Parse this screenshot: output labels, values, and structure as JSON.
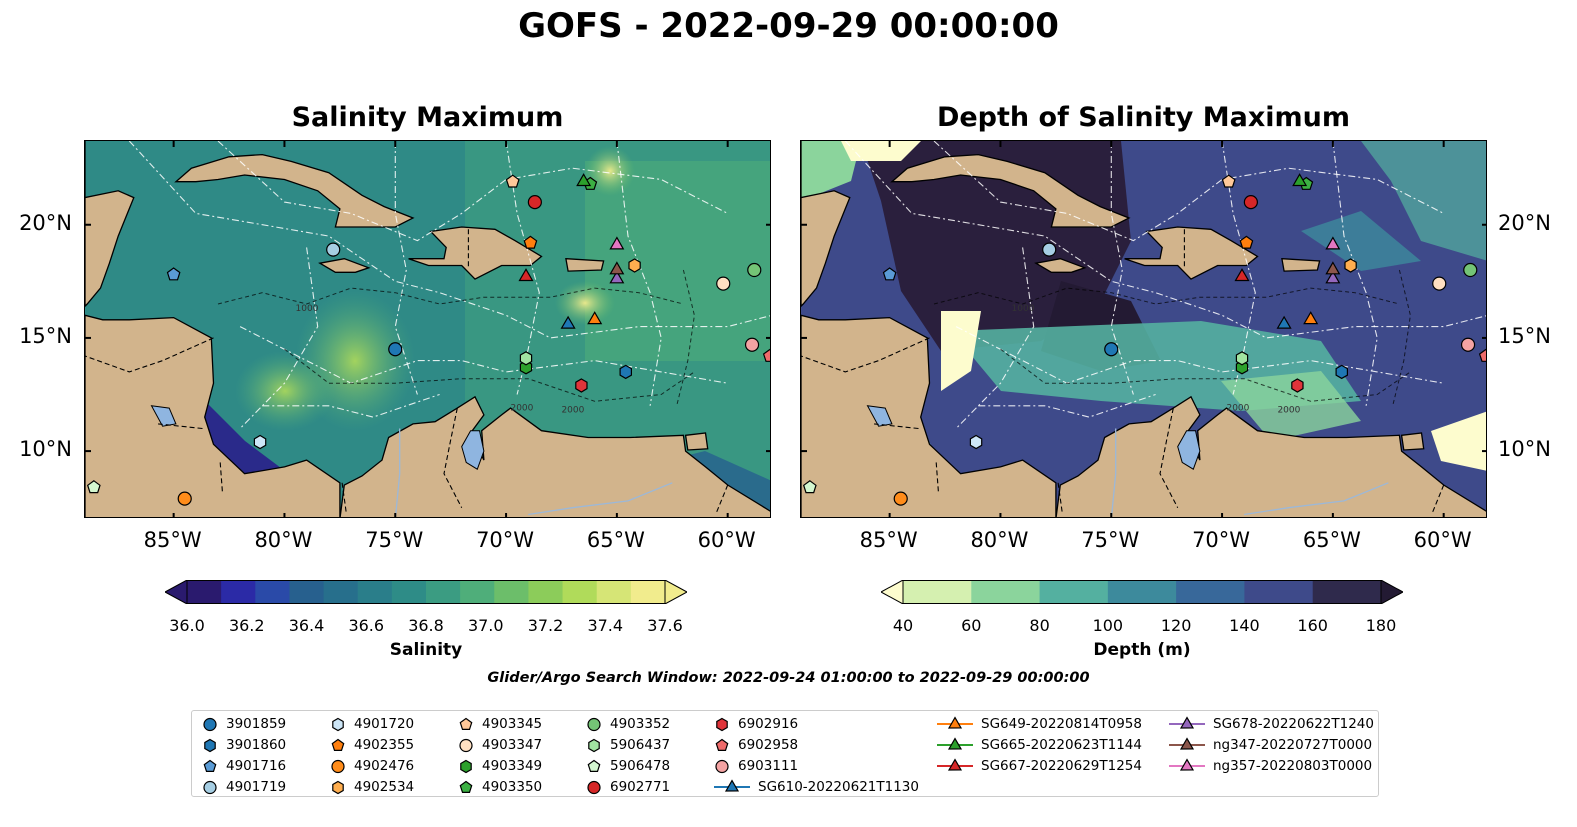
{
  "title": "GOFS - 2022-09-29 00:00:00",
  "panels": [
    {
      "title": "Salinity Maximum"
    },
    {
      "title": "Depth of Salinity Maximum"
    }
  ],
  "axes": {
    "lon_ticks": [
      "85°W",
      "80°W",
      "75°W",
      "70°W",
      "65°W",
      "60°W"
    ],
    "lat_ticks": [
      "20°N",
      "15°N",
      "10°N"
    ],
    "contour_labels": [
      "1000",
      "2000",
      "2000"
    ]
  },
  "colorbars": {
    "salinity": {
      "label": "Salinity",
      "ticks": [
        "36.0",
        "36.2",
        "36.4",
        "36.6",
        "36.8",
        "37.0",
        "37.2",
        "37.4",
        "37.6"
      ],
      "colors": [
        "#2a1a6e",
        "#2b2aa6",
        "#2a4aa8",
        "#27608e",
        "#276f8c",
        "#2a7e8a",
        "#2e8c87",
        "#3b9c82",
        "#4fae7a",
        "#6cbe6a",
        "#8ccc5a",
        "#b0db5a",
        "#d6e576",
        "#f1ec8d"
      ]
    },
    "depth": {
      "label": "Depth (m)",
      "ticks": [
        "40",
        "60",
        "80",
        "100",
        "120",
        "140",
        "160",
        "180"
      ],
      "colors": [
        "#d5f0b0",
        "#8bd49c",
        "#54b0a0",
        "#3d8a9c",
        "#38689a",
        "#3e4a8a",
        "#2f2a4c"
      ],
      "under_color": "#fdfcce",
      "over_color": "#231a33"
    }
  },
  "search_window": "Glider/Argo Search Window: 2022-09-24 01:00:00 to 2022-09-29 00:00:00",
  "legend": [
    {
      "label": "3901859",
      "marker": "circle",
      "color": "#1f77b4"
    },
    {
      "label": "3901860",
      "marker": "hexagon",
      "color": "#1f77b4"
    },
    {
      "label": "4901716",
      "marker": "pentagon",
      "color": "#5a9bd5"
    },
    {
      "label": "4901719",
      "marker": "circle",
      "color": "#a6cee3"
    },
    {
      "label": "4901720",
      "marker": "hexagon",
      "color": "#cde6f7"
    },
    {
      "label": "4902355",
      "marker": "pentagon",
      "color": "#ff7f0e"
    },
    {
      "label": "4902476",
      "marker": "circle",
      "color": "#ff8c1a"
    },
    {
      "label": "4902534",
      "marker": "hexagon",
      "color": "#ffae4f"
    },
    {
      "label": "4903345",
      "marker": "pentagon",
      "color": "#ffc899"
    },
    {
      "label": "4903347",
      "marker": "circle",
      "color": "#ffe0c2"
    },
    {
      "label": "4903349",
      "marker": "hexagon",
      "color": "#2ca02c"
    },
    {
      "label": "4903350",
      "marker": "pentagon",
      "color": "#3cb043"
    },
    {
      "label": "4903352",
      "marker": "circle",
      "color": "#74c476"
    },
    {
      "label": "5906437",
      "marker": "hexagon",
      "color": "#a1e3a1"
    },
    {
      "label": "5906478",
      "marker": "pentagon",
      "color": "#d4f7d0"
    },
    {
      "label": "6902771",
      "marker": "circle",
      "color": "#d62728"
    },
    {
      "label": "6902916",
      "marker": "hexagon",
      "color": "#e0343a"
    },
    {
      "label": "6902958",
      "marker": "pentagon",
      "color": "#ef6b6b"
    },
    {
      "label": "6903111",
      "marker": "circle",
      "color": "#f4a3a3"
    },
    {
      "label": "SG610-20220621T1130",
      "marker": "triangle",
      "color": "#1f77b4"
    },
    {
      "label": "SG649-20220814T0958",
      "marker": "triangle",
      "color": "#ff7f0e"
    },
    {
      "label": "SG665-20220623T1144",
      "marker": "triangle",
      "color": "#2ca02c"
    },
    {
      "label": "SG667-20220629T1254",
      "marker": "triangle",
      "color": "#d62728"
    },
    {
      "label": "SG678-20220622T1240",
      "marker": "triangle",
      "color": "#9467bd"
    },
    {
      "label": "ng347-20220727T0000",
      "marker": "triangle",
      "color": "#8c564b"
    },
    {
      "label": "ng357-20220803T0000",
      "marker": "triangle",
      "color": "#e377c2"
    }
  ],
  "observations": [
    {
      "id": "3901859",
      "lon": -75.0,
      "lat": 14.5
    },
    {
      "id": "3901860",
      "lon": -64.6,
      "lat": 13.5
    },
    {
      "id": "4901716",
      "lon": -85.0,
      "lat": 17.8
    },
    {
      "id": "4901719",
      "lon": -77.8,
      "lat": 18.9
    },
    {
      "id": "4901720",
      "lon": -81.1,
      "lat": 10.4
    },
    {
      "id": "4902355",
      "lon": -68.9,
      "lat": 19.2
    },
    {
      "id": "4902476",
      "lon": -84.5,
      "lat": 7.9
    },
    {
      "id": "4902534",
      "lon": -64.2,
      "lat": 18.2
    },
    {
      "id": "4903345",
      "lon": -69.7,
      "lat": 21.9
    },
    {
      "id": "4903347",
      "lon": -60.2,
      "lat": 17.4
    },
    {
      "id": "4903349",
      "lon": -69.1,
      "lat": 13.7
    },
    {
      "id": "4903350",
      "lon": -66.2,
      "lat": 21.8
    },
    {
      "id": "4903352",
      "lon": -58.8,
      "lat": 18.0
    },
    {
      "id": "5906437",
      "lon": -69.1,
      "lat": 14.1
    },
    {
      "id": "5906478",
      "lon": -88.6,
      "lat": 8.4
    },
    {
      "id": "6902771",
      "lon": -68.7,
      "lat": 21.0
    },
    {
      "id": "6902916",
      "lon": -66.6,
      "lat": 12.9
    },
    {
      "id": "6902958",
      "lon": -58.1,
      "lat": 14.2
    },
    {
      "id": "6903111",
      "lon": -58.9,
      "lat": 14.7
    },
    {
      "id": "SG610-20220621T1130",
      "lon": -67.2,
      "lat": 15.6
    },
    {
      "id": "SG649-20220814T0958",
      "lon": -66.0,
      "lat": 15.8
    },
    {
      "id": "SG665-20220623T1144",
      "lon": -66.5,
      "lat": 21.9
    },
    {
      "id": "SG667-20220629T1254",
      "lon": -69.1,
      "lat": 17.7
    },
    {
      "id": "SG678-20220622T1240",
      "lon": -65.0,
      "lat": 17.6
    },
    {
      "id": "ng347-20220727T0000",
      "lon": -65.0,
      "lat": 18.0
    },
    {
      "id": "ng357-20220803T0000",
      "lon": -65.0,
      "lat": 19.1
    }
  ],
  "map_extent": {
    "lon_min": -89,
    "lon_max": -58,
    "lat_min": 7,
    "lat_max": 23.7
  },
  "colors": {
    "land": "#d2b48c",
    "lake": "#8fb5e0",
    "eez": "#ffffff"
  }
}
